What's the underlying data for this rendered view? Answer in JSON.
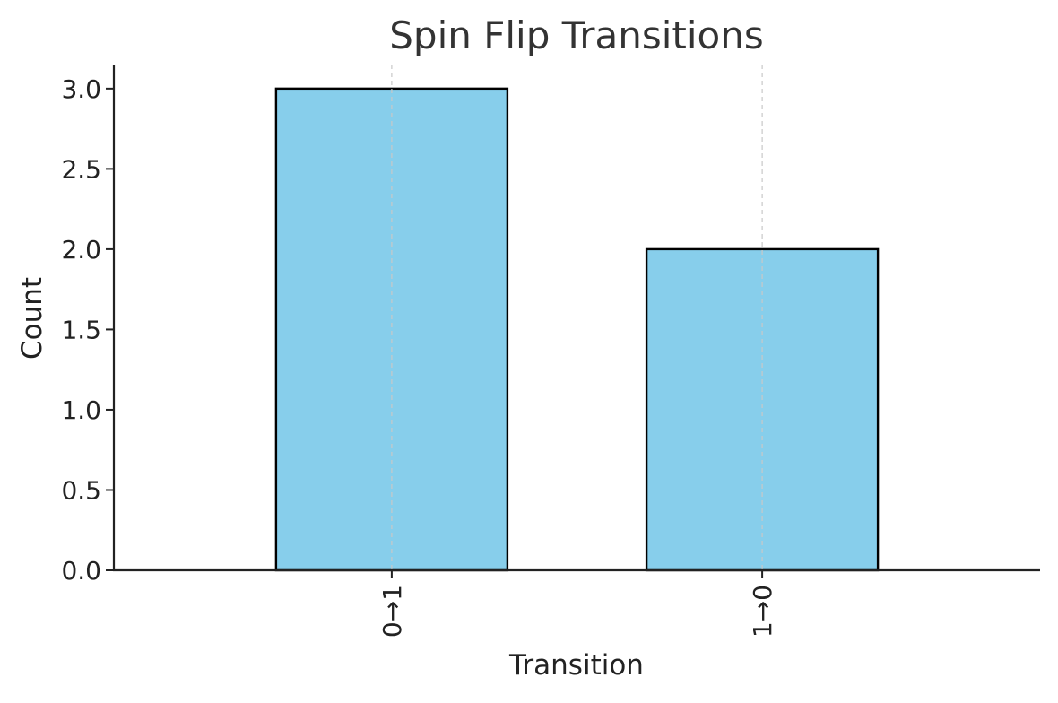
{
  "chart_data": {
    "type": "bar",
    "title": "Spin Flip Transitions",
    "xlabel": "Transition",
    "ylabel": "Count",
    "categories": [
      "0→1",
      "1→0"
    ],
    "values": [
      3,
      2
    ],
    "ylim": [
      0,
      3.15
    ],
    "yticks": [
      "0.0",
      "0.5",
      "1.0",
      "1.5",
      "2.0",
      "2.5",
      "3.0"
    ],
    "grid": "x-axis only, dashed",
    "bar_color": "#87CEEB",
    "bar_edge_color": "#000000"
  }
}
